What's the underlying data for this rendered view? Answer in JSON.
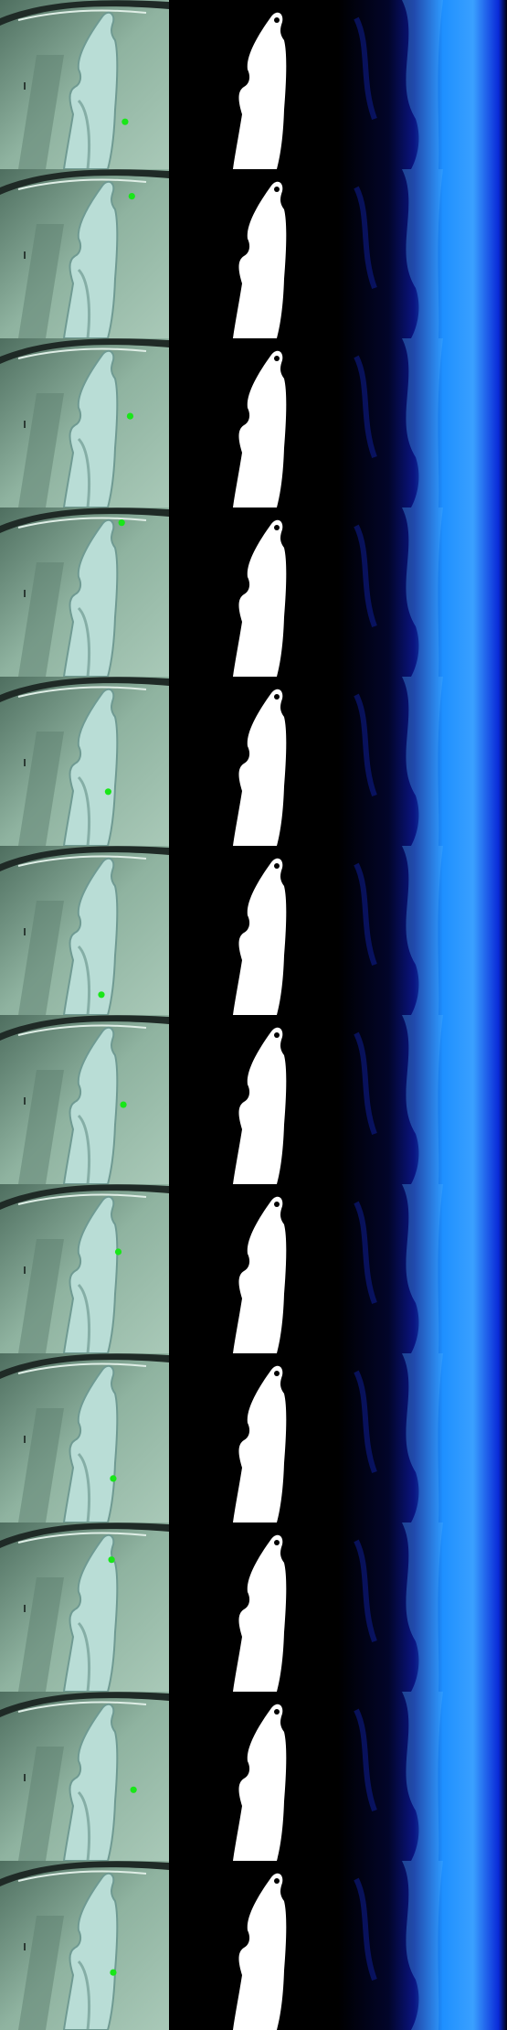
{
  "grid": {
    "rows": 12,
    "columns": [
      "photo-with-point",
      "segmentation-mask",
      "heatmap"
    ]
  },
  "colors": {
    "background": "#000000",
    "photo_wall": "#8fb3a0",
    "photo_wall_dark": "#4f6f60",
    "garment": "#b9ddd6",
    "garment_shadow": "#6f9a92",
    "point": "#19e619",
    "mask": "#ffffff",
    "heat_dim": "#0a1480",
    "heat_bright": "#1e90ff"
  },
  "icons": {
    "point": "prompt-point-marker"
  },
  "rows": [
    {
      "point": [
        0.74,
        0.72
      ]
    },
    {
      "point": [
        0.78,
        0.16
      ]
    },
    {
      "point": [
        0.77,
        0.46
      ]
    },
    {
      "point": [
        0.72,
        0.09
      ]
    },
    {
      "point": [
        0.64,
        0.68
      ]
    },
    {
      "point": [
        0.6,
        0.88
      ]
    },
    {
      "point": [
        0.73,
        0.53
      ]
    },
    {
      "point": [
        0.7,
        0.4
      ]
    },
    {
      "point": [
        0.67,
        0.74
      ]
    },
    {
      "point": [
        0.66,
        0.22
      ]
    },
    {
      "point": [
        0.79,
        0.58
      ]
    },
    {
      "point": [
        0.67,
        0.66
      ]
    }
  ]
}
